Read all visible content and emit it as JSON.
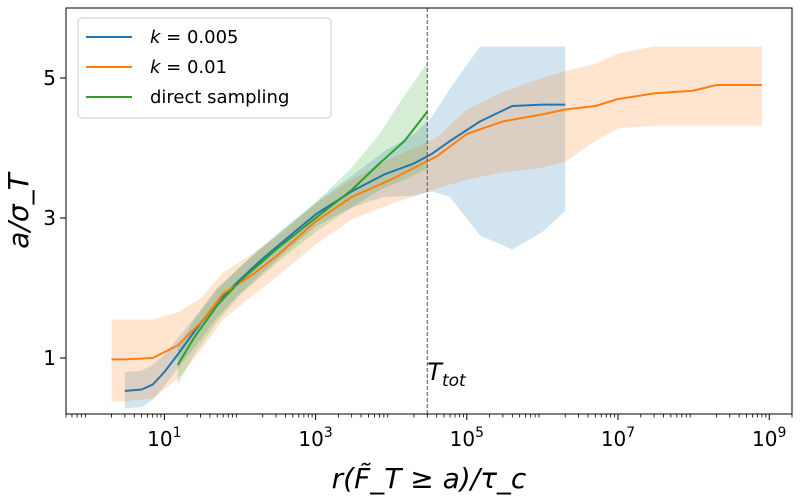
{
  "chart_data": {
    "type": "line",
    "title": "",
    "xlabel": "r(F̃_T ≥ a)/τ_c",
    "ylabel": "a/σ_T",
    "x_scale": "log",
    "xlim": [
      0.5,
      2000000000
    ],
    "ylim": [
      0.2,
      6.0
    ],
    "grid": false,
    "legend_position": "top-left",
    "x_ticks": [
      {
        "base": "10",
        "exp": "1",
        "value": 10
      },
      {
        "base": "10",
        "exp": "3",
        "value": 1000
      },
      {
        "base": "10",
        "exp": "5",
        "value": 100000
      },
      {
        "base": "10",
        "exp": "7",
        "value": 10000000
      },
      {
        "base": "10",
        "exp": "9",
        "value": 1000000000
      }
    ],
    "y_ticks": [
      {
        "label": "1",
        "value": 1
      },
      {
        "label": "3",
        "value": 3
      },
      {
        "label": "5",
        "value": 5
      }
    ],
    "vline": {
      "x": 30000,
      "label": "T",
      "label_sub": "tot",
      "style": "dashed"
    },
    "series": [
      {
        "name": "k = 0.005",
        "name_prefix": "k",
        "name_value": " = 0.005",
        "color": "#1f77b4",
        "x": [
          3,
          5,
          7,
          10,
          15,
          25,
          50,
          100,
          200,
          500,
          1000,
          3000,
          8000,
          20000,
          35000,
          60000,
          150000,
          400000,
          1000000,
          2000000
        ],
        "y": [
          0.53,
          0.55,
          0.62,
          0.8,
          1.05,
          1.38,
          1.8,
          2.12,
          2.42,
          2.78,
          3.05,
          3.38,
          3.62,
          3.78,
          3.92,
          4.1,
          4.38,
          4.6,
          4.62,
          4.62
        ],
        "lower": [
          0.28,
          0.3,
          0.4,
          0.6,
          0.85,
          1.15,
          1.58,
          1.92,
          2.22,
          2.6,
          2.88,
          3.15,
          3.3,
          3.32,
          3.38,
          3.3,
          2.75,
          2.55,
          2.8,
          3.1
        ],
        "upper": [
          0.8,
          0.82,
          0.9,
          1.05,
          1.28,
          1.58,
          2.0,
          2.3,
          2.6,
          2.95,
          3.22,
          3.6,
          3.95,
          4.2,
          4.45,
          4.85,
          5.45,
          5.45,
          5.45,
          5.45
        ]
      },
      {
        "name": "k = 0.01",
        "name_prefix": "k",
        "name_value": " = 0.01",
        "color": "#ff7f0e",
        "x": [
          2,
          3,
          7,
          15,
          30,
          60,
          150,
          300,
          1000,
          3000,
          10000,
          40000,
          100000,
          300000,
          1000000,
          2000000,
          5000000,
          10000000,
          30000000,
          100000000,
          200000000,
          800000000
        ],
        "y": [
          0.98,
          0.98,
          1.0,
          1.18,
          1.5,
          1.92,
          2.2,
          2.45,
          2.95,
          3.3,
          3.55,
          3.88,
          4.2,
          4.38,
          4.48,
          4.55,
          4.6,
          4.7,
          4.78,
          4.82,
          4.9,
          4.9
        ],
        "lower": [
          0.38,
          0.38,
          0.42,
          0.7,
          1.1,
          1.55,
          1.9,
          2.15,
          2.62,
          2.98,
          3.2,
          3.42,
          3.55,
          3.65,
          3.72,
          3.8,
          4.1,
          4.28,
          4.32,
          4.32,
          4.32,
          4.32
        ],
        "upper": [
          1.55,
          1.55,
          1.55,
          1.65,
          1.85,
          2.22,
          2.5,
          2.72,
          3.2,
          3.55,
          3.85,
          4.15,
          4.55,
          4.8,
          5.0,
          5.1,
          5.2,
          5.35,
          5.45,
          5.45,
          5.45,
          5.45
        ]
      },
      {
        "name": "direct sampling",
        "name_prefix": "",
        "name_value": "direct sampling",
        "color": "#2ca02c",
        "x": [
          15,
          25,
          50,
          100,
          300,
          1000,
          3000,
          7000,
          15000,
          30000
        ],
        "y": [
          0.9,
          1.3,
          1.75,
          2.1,
          2.55,
          3.0,
          3.4,
          3.78,
          4.1,
          4.52
        ],
        "lower": [
          0.62,
          1.05,
          1.52,
          1.9,
          2.35,
          2.8,
          3.15,
          3.4,
          3.55,
          3.7
        ],
        "upper": [
          1.15,
          1.55,
          1.98,
          2.3,
          2.75,
          3.22,
          3.72,
          4.2,
          4.75,
          5.22
        ]
      }
    ]
  }
}
